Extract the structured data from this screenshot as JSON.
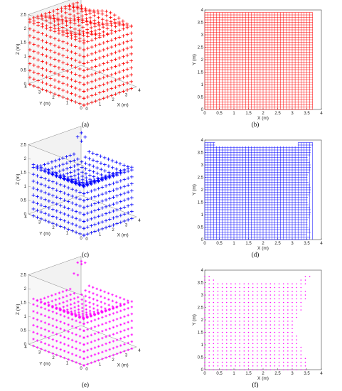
{
  "panels": [
    {
      "id": "a",
      "caption": "(a)",
      "kind": "3d",
      "color": "#ff0000",
      "marker": "+",
      "shape": "full",
      "zticks": [
        "0",
        "0.5",
        "1",
        "1.5",
        "2",
        "2.5"
      ],
      "yticks": [
        "0",
        "1",
        "2",
        "3",
        "4"
      ],
      "xticks": [
        "0",
        "1",
        "2",
        "3",
        "4"
      ],
      "zlabel": "Z (m)",
      "ylabel": "Y (m)",
      "xlabel": "X (m)"
    },
    {
      "id": "b",
      "caption": "(b)",
      "kind": "2d",
      "color": "#ff0000",
      "marker": "grid",
      "shape": "full",
      "xticks": [
        "0",
        "0.5",
        "1",
        "1.5",
        "2",
        "2.5",
        "3",
        "3.5",
        "4"
      ],
      "yticks": [
        "0",
        "0.5",
        "1",
        "1.5",
        "2",
        "2.5",
        "3",
        "3.5",
        "4"
      ],
      "xlabel": "X (m)",
      "ylabel": "Y (m)"
    },
    {
      "id": "c",
      "caption": "(c)",
      "kind": "3d",
      "color": "#0000ff",
      "marker": "+",
      "shape": "peaked",
      "zticks": [
        "0",
        "0.5",
        "1",
        "1.5",
        "2",
        "2.5"
      ],
      "yticks": [
        "0",
        "1",
        "2",
        "3",
        "4"
      ],
      "xticks": [
        "0",
        "1",
        "2",
        "3",
        "4"
      ],
      "zlabel": "Z (m)",
      "ylabel": "Y (m)",
      "xlabel": "X (m)"
    },
    {
      "id": "d",
      "caption": "(d)",
      "kind": "2d",
      "color": "#0000ff",
      "marker": "grid",
      "shape": "ragged",
      "xticks": [
        "0",
        "0.5",
        "1",
        "1.5",
        "2",
        "2.5",
        "3",
        "3.5",
        "4"
      ],
      "yticks": [
        "0",
        "0.5",
        "1",
        "1.5",
        "2",
        "2.5",
        "3",
        "3.5",
        "4"
      ],
      "xlabel": "X (m)",
      "ylabel": "Y (m)"
    },
    {
      "id": "e",
      "caption": "(e)",
      "kind": "3d",
      "color": "#ff00ff",
      "marker": "*",
      "shape": "spiked",
      "zticks": [
        "0",
        "0.5",
        "1",
        "1.5",
        "2",
        "2.5"
      ],
      "yticks": [
        "0",
        "1",
        "2",
        "3",
        "4"
      ],
      "xticks": [
        "0",
        "1",
        "2",
        "3",
        "4"
      ],
      "zlabel": "Z (m)",
      "ylabel": "Y (m)",
      "xlabel": "X (m)"
    },
    {
      "id": "f",
      "caption": "(f)",
      "kind": "2d",
      "color": "#ff00ff",
      "marker": "dot",
      "shape": "concave",
      "xticks": [
        "0",
        "0.5",
        "1",
        "1.5",
        "2",
        "2.5",
        "3",
        "3.5",
        "4"
      ],
      "yticks": [
        "0",
        "0.5",
        "1",
        "1.5",
        "2",
        "2.5",
        "3",
        "3.5",
        "4"
      ],
      "xlabel": "X (m)",
      "ylabel": "Y (m)"
    }
  ],
  "chart_data": [
    {
      "type": "scatter",
      "panel": "a",
      "title": "",
      "xlabel": "X (m)",
      "ylabel": "Y (m)",
      "zlabel": "Z (m)",
      "xlim": [
        0,
        4
      ],
      "ylim": [
        0,
        4
      ],
      "zlim": [
        0,
        2.5
      ],
      "grid": true,
      "series": [
        {
          "color": "#ff0000",
          "marker": "+",
          "x_range": [
            0,
            3.7
          ],
          "y_range": [
            0,
            3.9
          ],
          "z_range": [
            0,
            2.5
          ]
        }
      ]
    },
    {
      "type": "scatter",
      "panel": "b",
      "title": "",
      "xlabel": "X (m)",
      "ylabel": "Y (m)",
      "xlim": [
        0,
        4
      ],
      "ylim": [
        0,
        4
      ],
      "series": [
        {
          "color": "#ff0000",
          "marker": "grid",
          "x_range": [
            0,
            3.7
          ],
          "y_range": [
            0,
            3.9
          ],
          "spacing": 0.1
        }
      ]
    },
    {
      "type": "scatter",
      "panel": "c",
      "title": "",
      "xlabel": "X (m)",
      "ylabel": "Y (m)",
      "zlabel": "Z (m)",
      "xlim": [
        0,
        4
      ],
      "ylim": [
        0,
        4
      ],
      "zlim": [
        0,
        2.5
      ],
      "grid": true,
      "series": [
        {
          "color": "#0000ff",
          "marker": "+",
          "x_range": [
            0,
            3.7
          ],
          "y_range": [
            0,
            3.9
          ],
          "z_range": [
            0,
            2.5
          ]
        }
      ]
    },
    {
      "type": "scatter",
      "panel": "d",
      "title": "",
      "xlabel": "X (m)",
      "ylabel": "Y (m)",
      "xlim": [
        0,
        4
      ],
      "ylim": [
        0,
        4
      ],
      "series": [
        {
          "color": "#0000ff",
          "marker": "grid",
          "x_range": [
            0,
            3.7
          ],
          "y_range": [
            0,
            3.9
          ],
          "spacing": 0.1
        }
      ]
    },
    {
      "type": "scatter",
      "panel": "e",
      "title": "",
      "xlabel": "X (m)",
      "ylabel": "Y (m)",
      "zlabel": "Z (m)",
      "xlim": [
        0,
        4
      ],
      "ylim": [
        0,
        4
      ],
      "zlim": [
        0,
        2.5
      ],
      "grid": true,
      "series": [
        {
          "color": "#ff00ff",
          "marker": "*",
          "x_range": [
            0,
            3.7
          ],
          "y_range": [
            0,
            3.9
          ],
          "z_range": [
            0,
            2.5
          ]
        }
      ]
    },
    {
      "type": "scatter",
      "panel": "f",
      "title": "",
      "xlabel": "X (m)",
      "ylabel": "Y (m)",
      "xlim": [
        0,
        4
      ],
      "ylim": [
        0,
        4
      ],
      "series": [
        {
          "color": "#ff00ff",
          "marker": "dot",
          "x_range": [
            0,
            3.6
          ],
          "y_range": [
            0,
            3.85
          ],
          "spacing": 0.15
        }
      ]
    }
  ]
}
